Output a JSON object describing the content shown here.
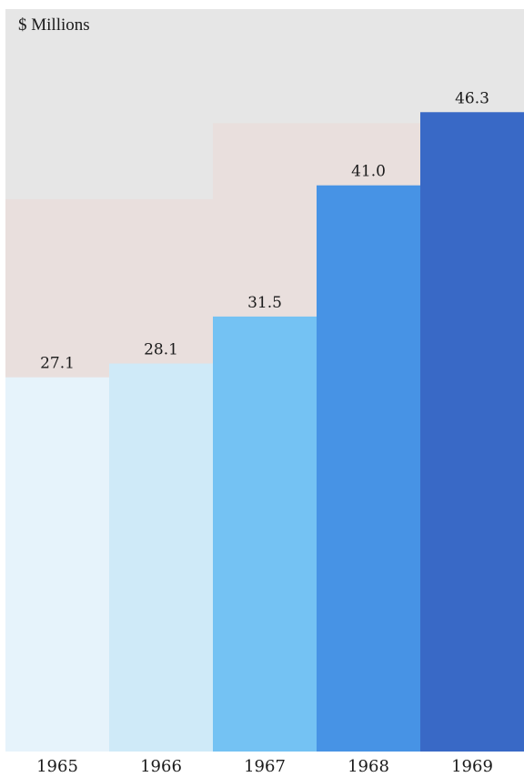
{
  "chart_data": {
    "type": "bar",
    "unit_label": "$ Millions",
    "categories": [
      "1965",
      "1966",
      "1967",
      "1968",
      "1969"
    ],
    "values": [
      27.1,
      28.1,
      31.5,
      41.0,
      46.3
    ],
    "value_labels": [
      "27.1",
      "28.1",
      "31.5",
      "41.0",
      "46.3"
    ],
    "bar_colors": [
      "#e6f3fb",
      "#cfeaf8",
      "#74c2f3",
      "#4793e5",
      "#3969c6"
    ],
    "background_colors": {
      "upper": "#e6e6e6",
      "lower": "#e9dfdd"
    },
    "ylim": [
      0,
      50
    ],
    "grid": false,
    "legend": "none"
  }
}
